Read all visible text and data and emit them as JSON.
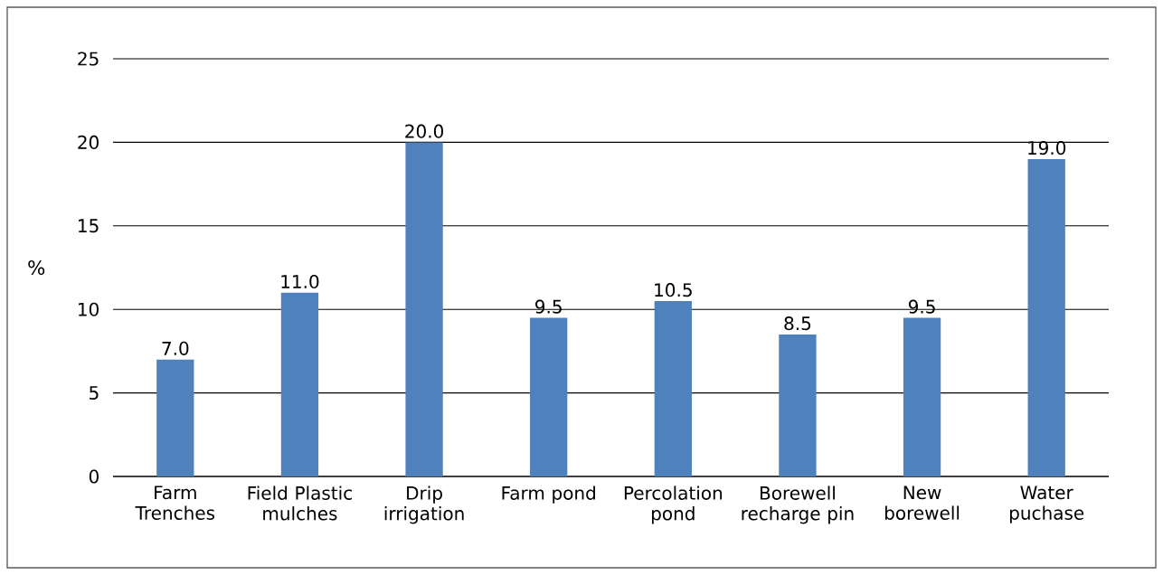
{
  "chart_data": {
    "type": "bar",
    "ylabel": "%",
    "categories": [
      "Farm Trenches",
      "Field Plastic mulches",
      "Drip irrigation",
      "Farm pond",
      "Percolation pond",
      "Borewell recharge pin",
      "New borewell",
      "Water puchase"
    ],
    "values": [
      7.0,
      11.0,
      20.0,
      9.5,
      10.5,
      8.5,
      9.5,
      19.0
    ],
    "value_labels": [
      "7.0",
      "11.0",
      "20.0",
      "9.5",
      "10.5",
      "8.5",
      "9.5",
      "19.0"
    ],
    "color": "#4f81bd",
    "ylim": [
      0,
      25
    ],
    "yticks": [
      0,
      5,
      10,
      15,
      20,
      25
    ],
    "grid": "y"
  }
}
